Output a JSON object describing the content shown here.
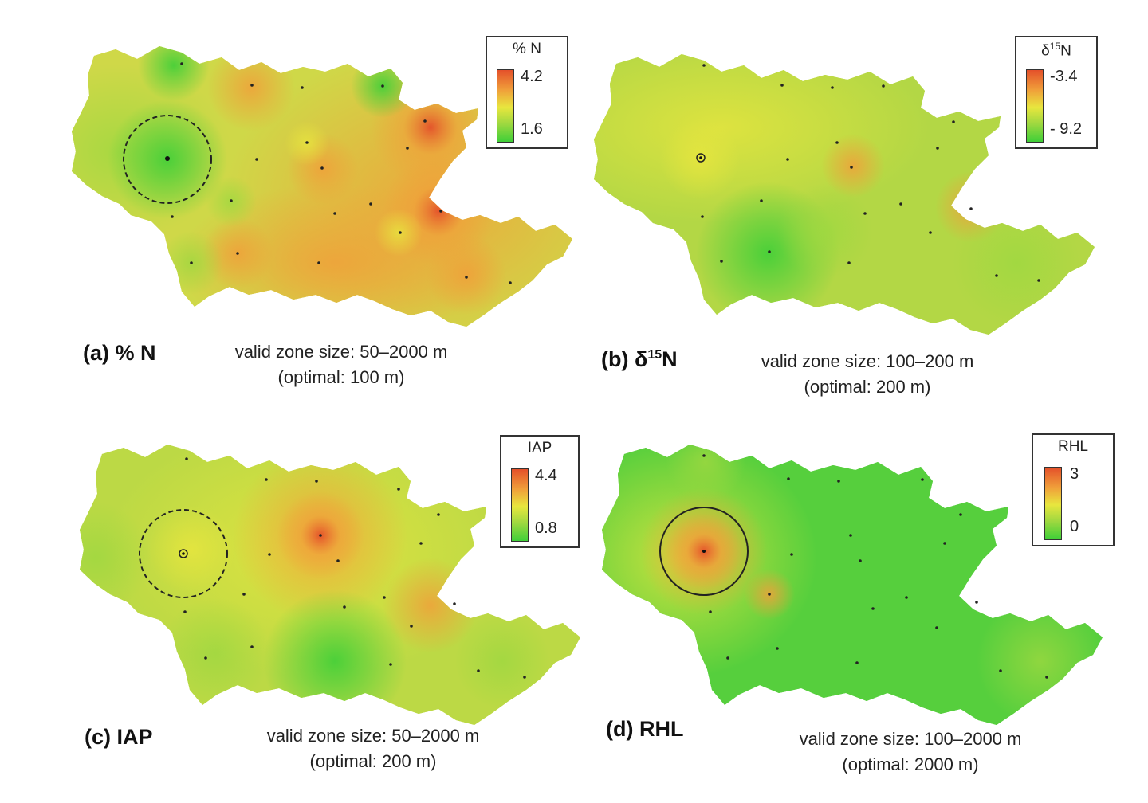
{
  "panels": [
    {
      "id": "a",
      "caption_letter": "(a)",
      "caption_var": "% N",
      "caption_sup": "",
      "zone_line1": "valid zone size: 50–2000 m",
      "zone_line2": "(optimal: 100 m)",
      "legend": {
        "title": "% N",
        "title_sup": "",
        "title_rest": "",
        "max": "4.2",
        "min": "1.6"
      },
      "circle_style": "dashed",
      "base_color": "#c9dc45"
    },
    {
      "id": "b",
      "caption_letter": "(b)",
      "caption_var": "δ",
      "caption_sup": "15",
      "caption_rest": "N",
      "zone_line1": "valid zone size: 100–200 m",
      "zone_line2": "(optimal: 200 m)",
      "legend": {
        "title": "δ",
        "title_sup": "15",
        "title_rest": "N",
        "max": "-3.4",
        "min": "- 9.2"
      },
      "circle_style": "none",
      "base_color": "#a6d843"
    },
    {
      "id": "c",
      "caption_letter": "(c)",
      "caption_var": "IAP",
      "caption_sup": "",
      "zone_line1": "valid zone size: 50–2000 m",
      "zone_line2": "(optimal: 200 m)",
      "legend": {
        "title": "IAP",
        "title_sup": "",
        "title_rest": "",
        "max": "4.4",
        "min": "0.8"
      },
      "circle_style": "dashed",
      "base_color": "#bcd945"
    },
    {
      "id": "d",
      "caption_letter": "(d)",
      "caption_var": "RHL",
      "caption_sup": "",
      "zone_line1": "valid zone size: 100–2000 m",
      "zone_line2": "(optimal: 2000 m)",
      "legend": {
        "title": "RHL",
        "title_sup": "",
        "title_rest": "",
        "max": "3",
        "min": "0"
      },
      "circle_style": "solid",
      "base_color": "#5ccf3e"
    }
  ],
  "colors": {
    "high": "#e4502a",
    "mid_high": "#f0a03a",
    "mid": "#e8e63e",
    "mid_low": "#9ed840",
    "low": "#3fcf38"
  }
}
